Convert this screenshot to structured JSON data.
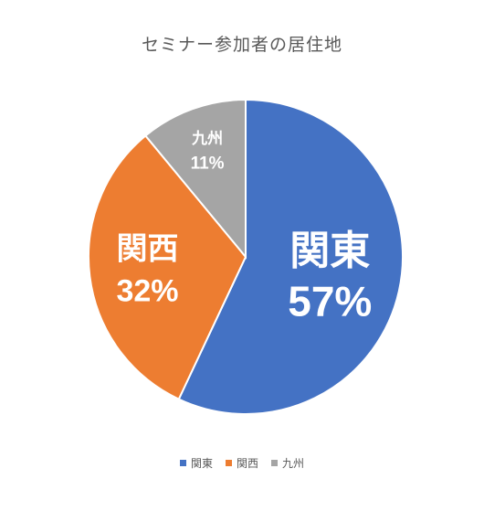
{
  "chart_data": {
    "type": "pie",
    "title": "セミナー参加者の居住地",
    "categories": [
      "関東",
      "関西",
      "九州"
    ],
    "values": [
      57,
      32,
      11
    ],
    "value_labels": [
      "57%",
      "32%",
      "11%"
    ],
    "unit": "%",
    "colors": [
      "#4472C4",
      "#ED7D31",
      "#A5A5A5"
    ],
    "legend": "bottom",
    "label_color": "#ffffff"
  }
}
